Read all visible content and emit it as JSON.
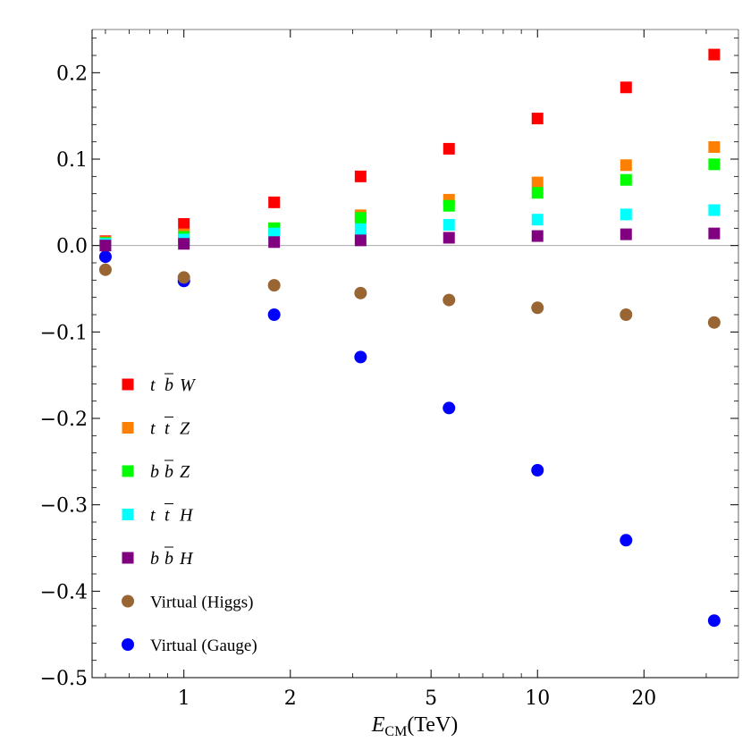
{
  "chart_data": {
    "type": "scatter",
    "title": "",
    "xscale": "log",
    "xlabel": {
      "main": "E",
      "sub": "CM",
      "unit": "(TeV)"
    },
    "ylabel": "",
    "xlim": [
      0.55,
      37
    ],
    "ylim": [
      -0.5,
      0.25
    ],
    "xticks": [
      1,
      2,
      5,
      10,
      20
    ],
    "xtick_labels": [
      "1",
      "2",
      "5",
      "10",
      "20"
    ],
    "yticks": [
      -0.5,
      -0.4,
      -0.3,
      -0.2,
      -0.1,
      0.0,
      0.1,
      0.2
    ],
    "ytick_labels": [
      "−0.5",
      "−0.4",
      "−0.3",
      "−0.2",
      "−0.1",
      "0.0",
      "0.1",
      "0.2"
    ],
    "x": [
      0.6,
      1.0,
      1.8,
      3.16,
      5.62,
      10.0,
      17.8,
      31.6
    ],
    "legend_position": "lower-left",
    "series": [
      {
        "name": "tbW",
        "label": [
          "t",
          "b",
          "W"
        ],
        "bars": [
          false,
          true,
          false
        ],
        "marker": "square",
        "color": "#ff0000",
        "values": [
          0.005,
          0.025,
          0.05,
          0.08,
          0.112,
          0.147,
          0.183,
          0.221
        ]
      },
      {
        "name": "ttZ",
        "label": [
          "t",
          "t",
          "Z"
        ],
        "bars": [
          false,
          true,
          false
        ],
        "marker": "square",
        "color": "#ff8000",
        "values": [
          0.004,
          0.013,
          0.02,
          0.035,
          0.053,
          0.073,
          0.093,
          0.114
        ]
      },
      {
        "name": "bbZ",
        "label": [
          "b",
          "b",
          "Z"
        ],
        "bars": [
          false,
          true,
          false
        ],
        "marker": "square",
        "color": "#00ff00",
        "values": [
          0.003,
          0.01,
          0.02,
          0.032,
          0.046,
          0.061,
          0.076,
          0.094
        ]
      },
      {
        "name": "ttH",
        "label": [
          "t",
          "t",
          "H"
        ],
        "bars": [
          false,
          true,
          false
        ],
        "marker": "square",
        "color": "#00ffff",
        "values": [
          0.002,
          0.007,
          0.014,
          0.019,
          0.024,
          0.03,
          0.036,
          0.041
        ]
      },
      {
        "name": "bbH",
        "label": [
          "b",
          "b",
          "H"
        ],
        "bars": [
          false,
          true,
          false
        ],
        "marker": "square",
        "color": "#800080",
        "values": [
          0.0,
          0.002,
          0.004,
          0.006,
          0.009,
          0.011,
          0.013,
          0.014
        ]
      },
      {
        "name": "Virtual (Higgs)",
        "label": "Virtual (Higgs)",
        "marker": "circle",
        "color": "#996633",
        "values": [
          -0.028,
          -0.037,
          -0.046,
          -0.055,
          -0.063,
          -0.072,
          -0.08,
          -0.089
        ]
      },
      {
        "name": "Virtual (Gauge)",
        "label": "Virtual (Gauge)",
        "marker": "circle",
        "color": "#0000ff",
        "values": [
          -0.013,
          -0.041,
          -0.08,
          -0.129,
          -0.188,
          -0.26,
          -0.341,
          -0.434
        ]
      }
    ]
  }
}
